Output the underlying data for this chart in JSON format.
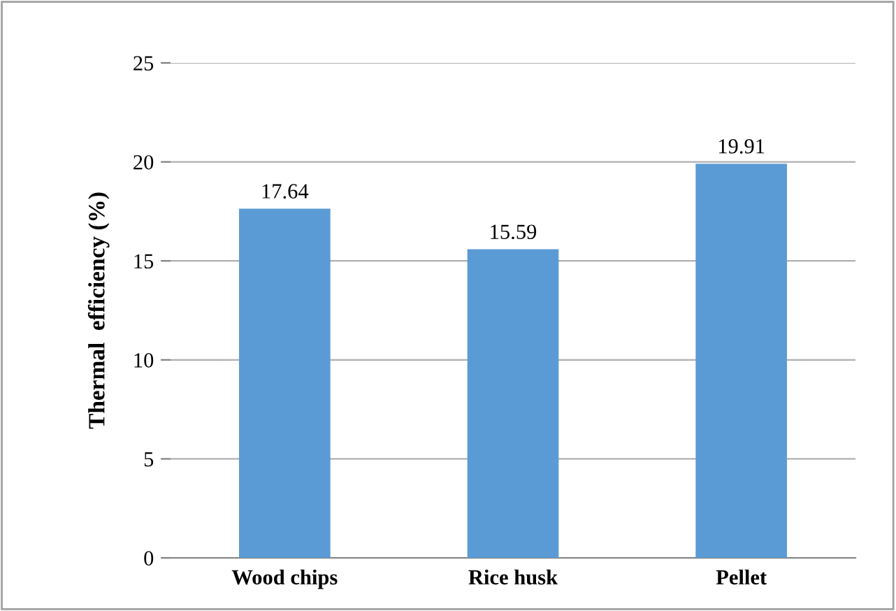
{
  "chart_data": {
    "type": "bar",
    "ylabel": "Thermal  efficiency (%)",
    "categories": [
      "Wood chips",
      "Rice husk",
      "Pellet"
    ],
    "values": [
      17.64,
      15.59,
      19.91
    ],
    "color": "#5b9bd5",
    "ylim": [
      0,
      25
    ],
    "yticks": [
      0,
      5,
      10,
      15,
      20,
      25
    ],
    "grid": "y",
    "data_labels": true
  }
}
